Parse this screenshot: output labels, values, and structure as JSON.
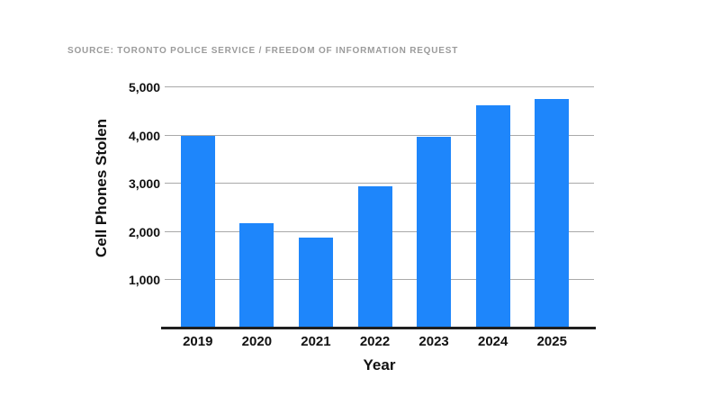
{
  "page": {
    "background": "#ffffff"
  },
  "source_note": "SOURCE: TORONTO POLICE SERVICE / FREEDOM OF INFORMATION REQUEST",
  "chart_data": {
    "type": "bar",
    "title": "",
    "categories": [
      "2019",
      "2020",
      "2021",
      "2022",
      "2023",
      "2024",
      "2025"
    ],
    "values": [
      4000,
      2190,
      1890,
      2940,
      3980,
      4620,
      4760
    ],
    "xlabel": "Year",
    "ylabel": "Cell Phones Stolen",
    "ylim": [
      0,
      5000
    ],
    "ytick_interval": 1000,
    "ytick_labels": [
      "1,000",
      "2,000",
      "3,000",
      "4,000",
      "5,000"
    ],
    "grid": true,
    "legend": "none",
    "colors": {
      "bar": "#1e86fb",
      "gridline": "#a9a9a9",
      "axis_line": "#1f1f1f",
      "tick_label": "#111111",
      "source_text": "#9b9b9b"
    }
  }
}
